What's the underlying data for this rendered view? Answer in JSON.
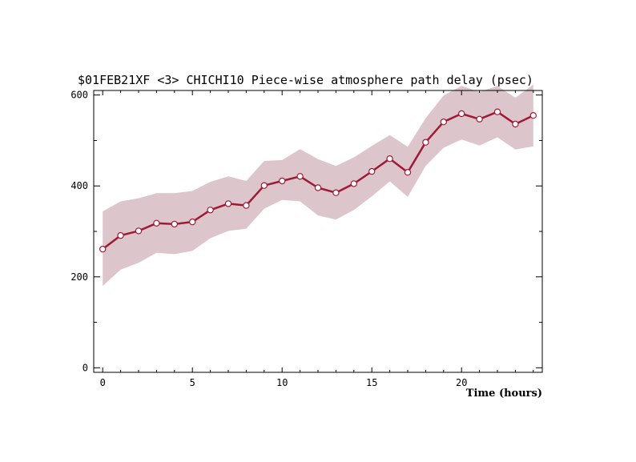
{
  "chart_data": {
    "type": "line",
    "title": "$01FEB21XF <3>  CHICHI10  Piece-wise atmosphere path delay (psec)",
    "xlabel": "Time (hours)",
    "ylabel": "",
    "xlim": [
      -0.5,
      24.5
    ],
    "ylim": [
      -10,
      610
    ],
    "x_ticks": [
      0,
      5,
      10,
      15,
      20
    ],
    "y_ticks": [
      0,
      200,
      400,
      600
    ],
    "grid": false,
    "x": [
      0,
      1,
      2,
      3,
      4,
      5,
      6,
      7,
      8,
      9,
      10,
      11,
      12,
      13,
      14,
      15,
      16,
      17,
      18,
      19,
      20,
      21,
      22,
      23,
      24
    ],
    "series": [
      {
        "values": [
          261,
          291,
          301,
          318,
          316,
          321,
          347,
          361,
          357,
          401,
          411,
          421,
          396,
          385,
          405,
          432,
          460,
          430,
          496,
          541,
          559,
          547,
          563,
          536,
          555
        ],
        "upper": [
          344,
          366,
          373,
          384,
          384,
          389,
          409,
          421,
          411,
          455,
          457,
          481,
          459,
          444,
          463,
          488,
          512,
          486,
          549,
          599,
          620,
          607,
          620,
          594,
          623
        ],
        "lower": [
          180,
          216,
          231,
          253,
          250,
          257,
          285,
          301,
          306,
          350,
          369,
          366,
          335,
          326,
          347,
          377,
          410,
          376,
          444,
          484,
          502,
          489,
          507,
          480,
          487
        ]
      }
    ],
    "colors": {
      "line": "#a01a36",
      "marker_fill": "#ffffff",
      "marker_stroke": "#a01a36",
      "band": "#dcc6cb",
      "axis": "#000000"
    }
  }
}
